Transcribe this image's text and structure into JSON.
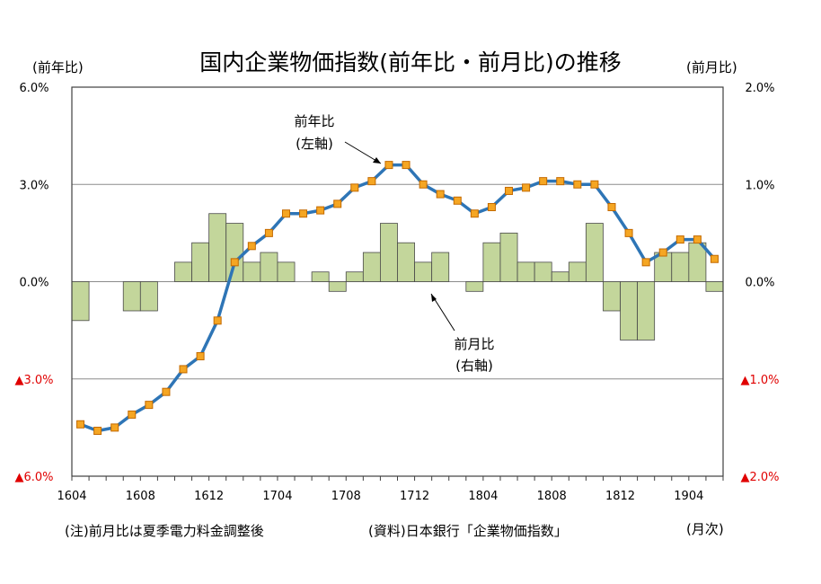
{
  "title": "国内企業物価指数(前年比・前月比)の推移",
  "left_unit": "(前年比)",
  "right_unit": "(前月比)",
  "x_unit": "(月次)",
  "note": "(注)前月比は夏季電力料金調整後",
  "source": "(資料)日本銀行「企業物価指数」",
  "colors": {
    "line": "#2E75B6",
    "marker": "#F5A623",
    "bar": "#C3D69B",
    "negative": "#E00000"
  },
  "chart_data": {
    "type": "bar+line",
    "categories": [
      "1604",
      "1605",
      "1606",
      "1607",
      "1608",
      "1609",
      "1610",
      "1611",
      "1612",
      "1701",
      "1702",
      "1703",
      "1704",
      "1705",
      "1706",
      "1707",
      "1708",
      "1709",
      "1710",
      "1711",
      "1712",
      "1801",
      "1802",
      "1803",
      "1804",
      "1805",
      "1806",
      "1807",
      "1808",
      "1809",
      "1810",
      "1811",
      "1812",
      "1901",
      "1902",
      "1903",
      "1904",
      "1905"
    ],
    "x_tick_labels": [
      "1604",
      "1608",
      "1612",
      "1704",
      "1708",
      "1712",
      "1804",
      "1808",
      "1812",
      "1904"
    ],
    "left_axis": {
      "ticks": [
        "6.0%",
        "3.0%",
        "0.0%",
        "▲3.0%",
        "▲6.0%"
      ],
      "ylim": [
        -6,
        6
      ]
    },
    "right_axis": {
      "ticks": [
        "2.0%",
        "1.0%",
        "0.0%",
        "▲1.0%",
        "▲2.0%"
      ],
      "ylim": [
        -2,
        2
      ]
    },
    "grid": true,
    "series": [
      {
        "name": "前年比",
        "label_line2": "(左軸)",
        "type": "line",
        "axis": "left",
        "values": [
          -4.4,
          -4.6,
          -4.5,
          -4.1,
          -3.8,
          -3.4,
          -2.7,
          -2.3,
          -1.2,
          0.6,
          1.1,
          1.5,
          2.1,
          2.1,
          2.2,
          2.4,
          2.9,
          3.1,
          3.6,
          3.6,
          3.0,
          2.7,
          2.5,
          2.1,
          2.3,
          2.8,
          2.9,
          3.1,
          3.1,
          3.0,
          3.0,
          2.3,
          1.5,
          0.6,
          0.9,
          1.3,
          1.3,
          0.7
        ]
      },
      {
        "name": "前月比",
        "label_line2": "(右軸)",
        "type": "bar",
        "axis": "right",
        "values": [
          -0.4,
          0.0,
          0.0,
          -0.3,
          -0.3,
          0.0,
          0.2,
          0.4,
          0.7,
          0.6,
          0.2,
          0.3,
          0.2,
          0.0,
          0.1,
          -0.1,
          0.1,
          0.3,
          0.6,
          0.4,
          0.2,
          0.3,
          0.0,
          -0.1,
          0.4,
          0.5,
          0.2,
          0.2,
          0.1,
          0.2,
          0.6,
          -0.3,
          -0.6,
          -0.6,
          0.3,
          0.3,
          0.4,
          -0.1
        ]
      }
    ]
  }
}
